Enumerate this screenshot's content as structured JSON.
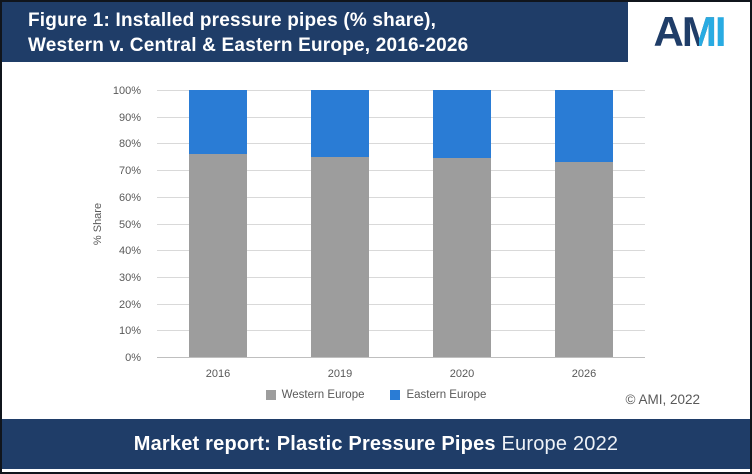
{
  "header": {
    "title_line1": "Figure 1: Installed pressure pipes (% share),",
    "title_line2": "Western v. Central & Eastern Europe, 2016-2026",
    "logo": {
      "letter_a": "A",
      "letter_m": "M",
      "letter_i": "I",
      "navy": "#1f3d68",
      "cyan": "#29abe2"
    }
  },
  "chart_data": {
    "type": "bar",
    "stacked": true,
    "categories": [
      "2016",
      "2019",
      "2020",
      "2026"
    ],
    "series": [
      {
        "name": "Western Europe",
        "color": "#9d9d9d",
        "values": [
          76,
          75,
          74.5,
          73
        ]
      },
      {
        "name": "Eastern Europe",
        "color": "#2a7cd5",
        "values": [
          24,
          25,
          25.5,
          27
        ]
      }
    ],
    "title": "Installed pressure pipes (% share), Western v. Central & Eastern Europe, 2016-2026",
    "xlabel": "",
    "ylabel": "% Share",
    "ylim": [
      0,
      100
    ],
    "ytick_step": 10,
    "ytick_suffix": "%",
    "grid": true,
    "legend_position": "bottom"
  },
  "footnote": "© AMI, 2022",
  "footer": {
    "bold_text": "Market report: Plastic Pressure Pipes",
    "regular_text": "Europe 2022"
  }
}
